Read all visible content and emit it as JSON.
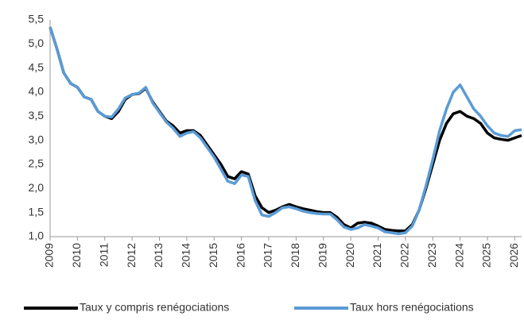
{
  "chart_data": {
    "type": "line",
    "x": [
      2009,
      2009.25,
      2009.5,
      2009.75,
      2010,
      2010.25,
      2010.5,
      2010.75,
      2011,
      2011.25,
      2011.5,
      2011.75,
      2012,
      2012.25,
      2012.5,
      2012.75,
      2013,
      2013.25,
      2013.5,
      2013.75,
      2014,
      2014.25,
      2014.5,
      2014.75,
      2015,
      2015.25,
      2015.5,
      2015.75,
      2016,
      2016.25,
      2016.5,
      2016.75,
      2017,
      2017.25,
      2017.5,
      2017.75,
      2018,
      2018.25,
      2018.5,
      2018.75,
      2019,
      2019.25,
      2019.5,
      2019.75,
      2020,
      2020.25,
      2020.5,
      2020.75,
      2021,
      2021.25,
      2021.5,
      2021.75,
      2022,
      2022.25,
      2022.5,
      2022.75,
      2023,
      2023.25,
      2023.5,
      2023.75,
      2024,
      2024.25,
      2024.5,
      2024.75,
      2025,
      2025.25,
      2025.5,
      2025.75,
      2026,
      2026.25
    ],
    "series": [
      {
        "name": "Taux y compris renégociations",
        "color": "#000000",
        "values": [
          5.35,
          4.9,
          4.4,
          4.18,
          4.1,
          3.9,
          3.85,
          3.6,
          3.5,
          3.45,
          3.6,
          3.85,
          3.95,
          3.97,
          4.08,
          3.8,
          3.6,
          3.4,
          3.3,
          3.15,
          3.2,
          3.2,
          3.1,
          2.9,
          2.7,
          2.5,
          2.25,
          2.2,
          2.35,
          2.3,
          1.85,
          1.6,
          1.5,
          1.55,
          1.62,
          1.67,
          1.62,
          1.58,
          1.55,
          1.52,
          1.5,
          1.5,
          1.4,
          1.25,
          1.18,
          1.28,
          1.3,
          1.28,
          1.22,
          1.15,
          1.13,
          1.12,
          1.12,
          1.25,
          1.55,
          2.0,
          2.5,
          3.0,
          3.35,
          3.55,
          3.6,
          3.5,
          3.45,
          3.35,
          3.15,
          3.05,
          3.02,
          3.0,
          3.05,
          3.1
        ]
      },
      {
        "name": "Taux hors renégociations",
        "color": "#5b9bd5",
        "values": [
          5.35,
          4.9,
          4.4,
          4.18,
          4.1,
          3.9,
          3.85,
          3.6,
          3.5,
          3.48,
          3.65,
          3.88,
          3.95,
          3.98,
          4.1,
          3.78,
          3.58,
          3.38,
          3.25,
          3.08,
          3.15,
          3.18,
          3.05,
          2.85,
          2.65,
          2.4,
          2.15,
          2.1,
          2.28,
          2.25,
          1.75,
          1.45,
          1.42,
          1.5,
          1.6,
          1.62,
          1.58,
          1.53,
          1.5,
          1.48,
          1.47,
          1.47,
          1.35,
          1.2,
          1.15,
          1.18,
          1.25,
          1.22,
          1.18,
          1.1,
          1.08,
          1.06,
          1.08,
          1.22,
          1.55,
          2.05,
          2.6,
          3.2,
          3.65,
          4.0,
          4.15,
          3.9,
          3.65,
          3.5,
          3.3,
          3.15,
          3.1,
          3.08,
          3.2,
          3.22
        ]
      }
    ],
    "xlim": [
      2009,
      2026.25
    ],
    "xticks": [
      2009,
      2010,
      2011,
      2012,
      2013,
      2014,
      2015,
      2016,
      2017,
      2018,
      2019,
      2020,
      2021,
      2022,
      2023,
      2024,
      2025,
      2026
    ],
    "ylim": [
      1,
      5.5
    ],
    "yticks": [
      {
        "value": 1,
        "label": "1,0"
      },
      {
        "value": 1.5,
        "label": "1,5"
      },
      {
        "value": 2,
        "label": "2,0"
      },
      {
        "value": 2.5,
        "label": "2,5"
      },
      {
        "value": 3,
        "label": "3,0"
      },
      {
        "value": 3.5,
        "label": "3,5"
      },
      {
        "value": 4,
        "label": "4,0"
      },
      {
        "value": 4.5,
        "label": "4,5"
      },
      {
        "value": 5,
        "label": "5,0"
      },
      {
        "value": 5.5,
        "label": "5,5"
      }
    ],
    "grid": false,
    "legend": "bottom"
  }
}
